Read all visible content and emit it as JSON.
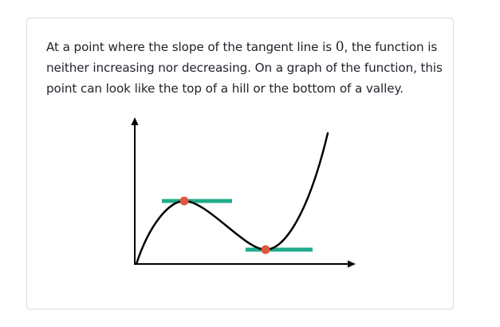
{
  "paragraph": {
    "part1": "At a point where the slope of the tangent line is ",
    "math_value": "0",
    "part2": ", the function is neither increasing nor decreasing. On a graph of the function, this point can look like the top of a hill or the bottom of a valley."
  },
  "colors": {
    "curve": "#000000",
    "tangent": "#1fab8a",
    "point": "#e0563e",
    "axis": "#000000",
    "border": "#dcdcdc",
    "text": "#21242c"
  },
  "figure_icons": {
    "y_axis_arrow": "arrow-up-icon",
    "x_axis_arrow": "arrow-right-icon"
  }
}
